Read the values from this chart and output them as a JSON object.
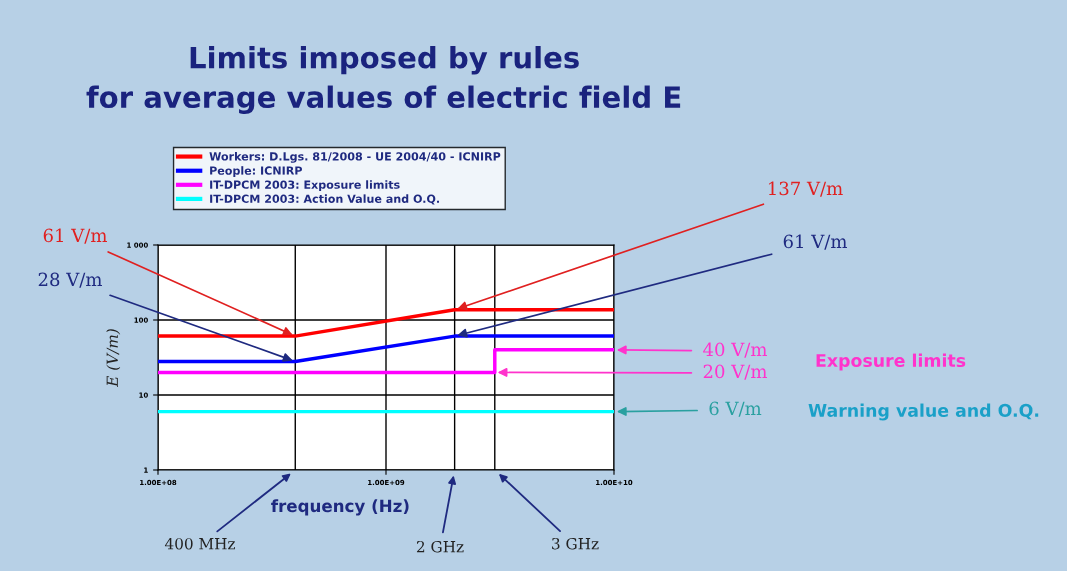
{
  "chart_data": {
    "type": "line",
    "title": "Limits imposed by rules\nfor average values of electric field E",
    "xlabel": "frequency (Hz)",
    "ylabel": "E (V/m)",
    "log": "xy",
    "grid": true,
    "legend": "top",
    "xlim": [
      100000000,
      10000000000
    ],
    "xticks": [
      {
        "value": 100000000,
        "label": "1.00E+08"
      },
      {
        "value": 1000000000,
        "label": "1.00E+09"
      },
      {
        "value": 10000000000,
        "label": "1.00E+10"
      }
    ],
    "ylim": [
      1,
      1000
    ],
    "yticks": [
      1,
      10,
      100,
      {
        "value": 1000,
        "label": "1 000"
      }
    ],
    "series": [
      {
        "name": "Workers: D.Lgs. 81/2008 - UE 2004/40 - ICNIRP",
        "color": "#ff0000",
        "x": [
          100000000,
          400000000,
          2000000000,
          10000000000
        ],
        "values": [
          61,
          61,
          137,
          137
        ]
      },
      {
        "name": "People: ICNIRP",
        "color": "#0000ff",
        "x": [
          100000000,
          400000000,
          2000000000,
          10000000000
        ],
        "values": [
          28,
          28,
          61,
          61
        ]
      },
      {
        "name": "IT-DPCM 2003: Exposure limits",
        "color": "#ff00ff",
        "x": [
          100000000,
          3000000000,
          3000000000,
          10000000000
        ],
        "values": [
          20,
          20,
          40,
          40
        ]
      },
      {
        "name": "IT-DPCM 2003: Action Value and O.Q.",
        "color": "#00ffff",
        "x": [
          100000000,
          10000000000
        ],
        "values": [
          6,
          6
        ]
      }
    ],
    "ref_lines": [
      {
        "axis": "x",
        "value": 400000000,
        "label": "400 MHz",
        "color": "#000000"
      },
      {
        "axis": "x",
        "value": 2000000000,
        "label": "2 GHz",
        "color": "#000000"
      },
      {
        "axis": "x",
        "value": 3000000000,
        "label": "3 GHz",
        "color": "#000000"
      }
    ],
    "annotations": [
      {
        "text": "61 V/m",
        "x": 400000000,
        "y": 61
      },
      {
        "text": "28 V/m",
        "x": 400000000,
        "y": 28
      },
      {
        "text": "137 V/m",
        "x": 2000000000,
        "y": 137
      },
      {
        "text": "61 V/m",
        "x": 2000000000,
        "y": 61
      },
      {
        "text": "40 V/m",
        "x": 10000000000,
        "y": 40
      },
      {
        "text": "20 V/m",
        "x": 3000000000,
        "y": 20
      },
      {
        "text": "6 V/m",
        "x": 10000000000,
        "y": 6
      },
      "Exposure limits",
      "Warning value and O.Q."
    ]
  }
}
